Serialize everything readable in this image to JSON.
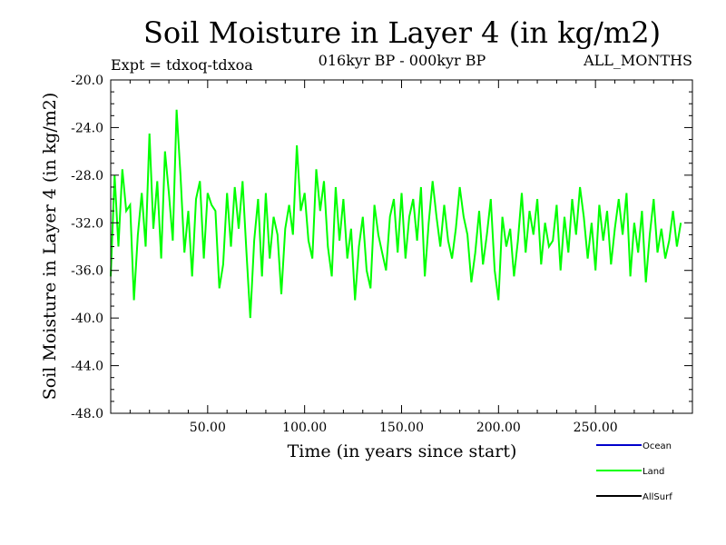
{
  "chart_data": {
    "type": "line",
    "title": "Soil Moisture in Layer 4 (in kg/m2)",
    "subtitle_left": "Expt = tdxoq-tdxoa",
    "subtitle_center": "016kyr BP - 000kyr BP",
    "subtitle_right": "ALL_MONTHS",
    "xlabel": "Time (in years since start)",
    "ylabel": "Soil Moisture in Layer 4 (in kg/m2)",
    "xlim": [
      0,
      300
    ],
    "ylim": [
      -48,
      -20
    ],
    "x_ticks": [
      "50.00",
      "100.00",
      "150.00",
      "200.00",
      "250.00"
    ],
    "y_ticks": [
      "-20.0",
      "-24.0",
      "-28.0",
      "-32.0",
      "-36.0",
      "-40.0",
      "-44.0",
      "-48.0"
    ],
    "legend_position": "bottom-right",
    "series": [
      {
        "name": "Ocean",
        "color": "#0000cc",
        "values": []
      },
      {
        "name": "Land",
        "color": "#00ff00",
        "x_start": 0,
        "x_step": 2,
        "values": [
          -36.5,
          -28.0,
          -34.0,
          -27.5,
          -31.0,
          -30.5,
          -38.5,
          -33.0,
          -29.5,
          -34.0,
          -24.5,
          -32.5,
          -28.5,
          -35.0,
          -26.0,
          -29.5,
          -33.5,
          -22.5,
          -28.0,
          -34.5,
          -31.0,
          -36.5,
          -30.0,
          -28.5,
          -35.0,
          -29.5,
          -30.5,
          -31.0,
          -37.5,
          -35.5,
          -29.5,
          -34.0,
          -29.0,
          -32.5,
          -28.5,
          -34.5,
          -40.0,
          -33.5,
          -30.0,
          -36.5,
          -29.5,
          -35.0,
          -31.5,
          -33.0,
          -38.0,
          -32.5,
          -30.5,
          -33.0,
          -25.5,
          -31.0,
          -29.5,
          -33.5,
          -35.0,
          -27.5,
          -31.0,
          -28.5,
          -34.0,
          -36.5,
          -29.0,
          -33.5,
          -30.0,
          -35.0,
          -32.5,
          -38.5,
          -34.0,
          -31.5,
          -36.0,
          -37.5,
          -30.5,
          -33.0,
          -34.5,
          -36.0,
          -31.5,
          -30.0,
          -34.5,
          -29.5,
          -35.0,
          -31.5,
          -30.0,
          -33.5,
          -29.0,
          -36.5,
          -32.0,
          -28.5,
          -31.5,
          -34.0,
          -30.5,
          -33.5,
          -35.0,
          -32.5,
          -29.0,
          -31.5,
          -33.0,
          -37.0,
          -34.5,
          -31.0,
          -35.5,
          -33.0,
          -30.0,
          -36.0,
          -38.5,
          -31.5,
          -34.0,
          -32.5,
          -36.5,
          -33.5,
          -29.5,
          -34.5,
          -31.0,
          -33.0,
          -30.0,
          -35.5,
          -32.0,
          -34.0,
          -33.5,
          -30.5,
          -36.0,
          -31.5,
          -34.5,
          -30.0,
          -33.0,
          -29.0,
          -31.5,
          -35.0,
          -32.0,
          -36.0,
          -30.5,
          -33.5,
          -31.0,
          -35.5,
          -32.5,
          -30.0,
          -33.0,
          -29.5,
          -36.5,
          -32.0,
          -34.5,
          -31.0,
          -37.0,
          -33.0,
          -30.0,
          -34.5,
          -32.5,
          -35.0,
          -33.5,
          -31.0,
          -34.0,
          -32.0
        ]
      },
      {
        "name": "AllSurf",
        "color": "#000000",
        "values": []
      }
    ]
  }
}
